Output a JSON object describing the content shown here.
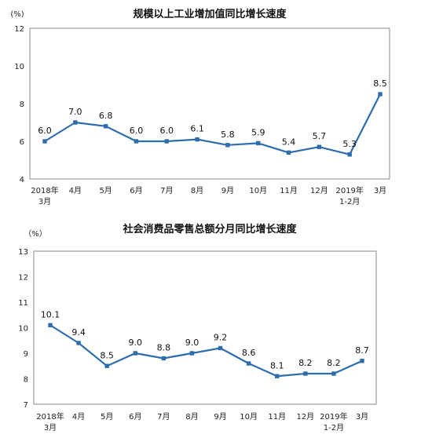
{
  "chart_data": [
    {
      "type": "line",
      "title": "规模以上工业增加值同比增长速度",
      "unit": "(%)",
      "categories": [
        "2018年\n3月",
        "4月",
        "5月",
        "6月",
        "7月",
        "8月",
        "9月",
        "10月",
        "11月",
        "12月",
        "2019年\n1-2月",
        "3月"
      ],
      "values": [
        6.0,
        7.0,
        6.8,
        6.0,
        6.0,
        6.1,
        5.8,
        5.9,
        5.4,
        5.7,
        5.3,
        8.5
      ],
      "data_labels": [
        "6.0",
        "7.0",
        "6.8",
        "6.0",
        "6.0",
        "6.1",
        "5.8",
        "5.9",
        "5.4",
        "5.7",
        "5.3",
        "8.5"
      ],
      "yticks": [
        "4",
        "6",
        "8",
        "10",
        "12"
      ],
      "ylim": [
        4,
        12
      ],
      "grid": false,
      "color": "#2e6dad"
    },
    {
      "type": "line",
      "title": "社会消费品零售总额分月同比增长速度",
      "unit": "（%）",
      "categories": [
        "2018年\n3月",
        "4月",
        "5月",
        "6月",
        "7月",
        "8月",
        "9月",
        "10月",
        "11月",
        "12月",
        "2019年\n1-2月",
        "3月"
      ],
      "values": [
        10.1,
        9.4,
        8.5,
        9.0,
        8.8,
        9.0,
        9.2,
        8.6,
        8.1,
        8.2,
        8.2,
        8.7
      ],
      "data_labels": [
        "10.1",
        "9.4",
        "8.5",
        "9.0",
        "8.8",
        "9.0",
        "9.2",
        "8.6",
        "8.1",
        "8.2",
        "8.2",
        "8.7"
      ],
      "yticks": [
        "7",
        "8",
        "9",
        "10",
        "11",
        "12",
        "13"
      ],
      "ylim": [
        7,
        13
      ],
      "grid": false,
      "color": "#2e6dad"
    }
  ]
}
